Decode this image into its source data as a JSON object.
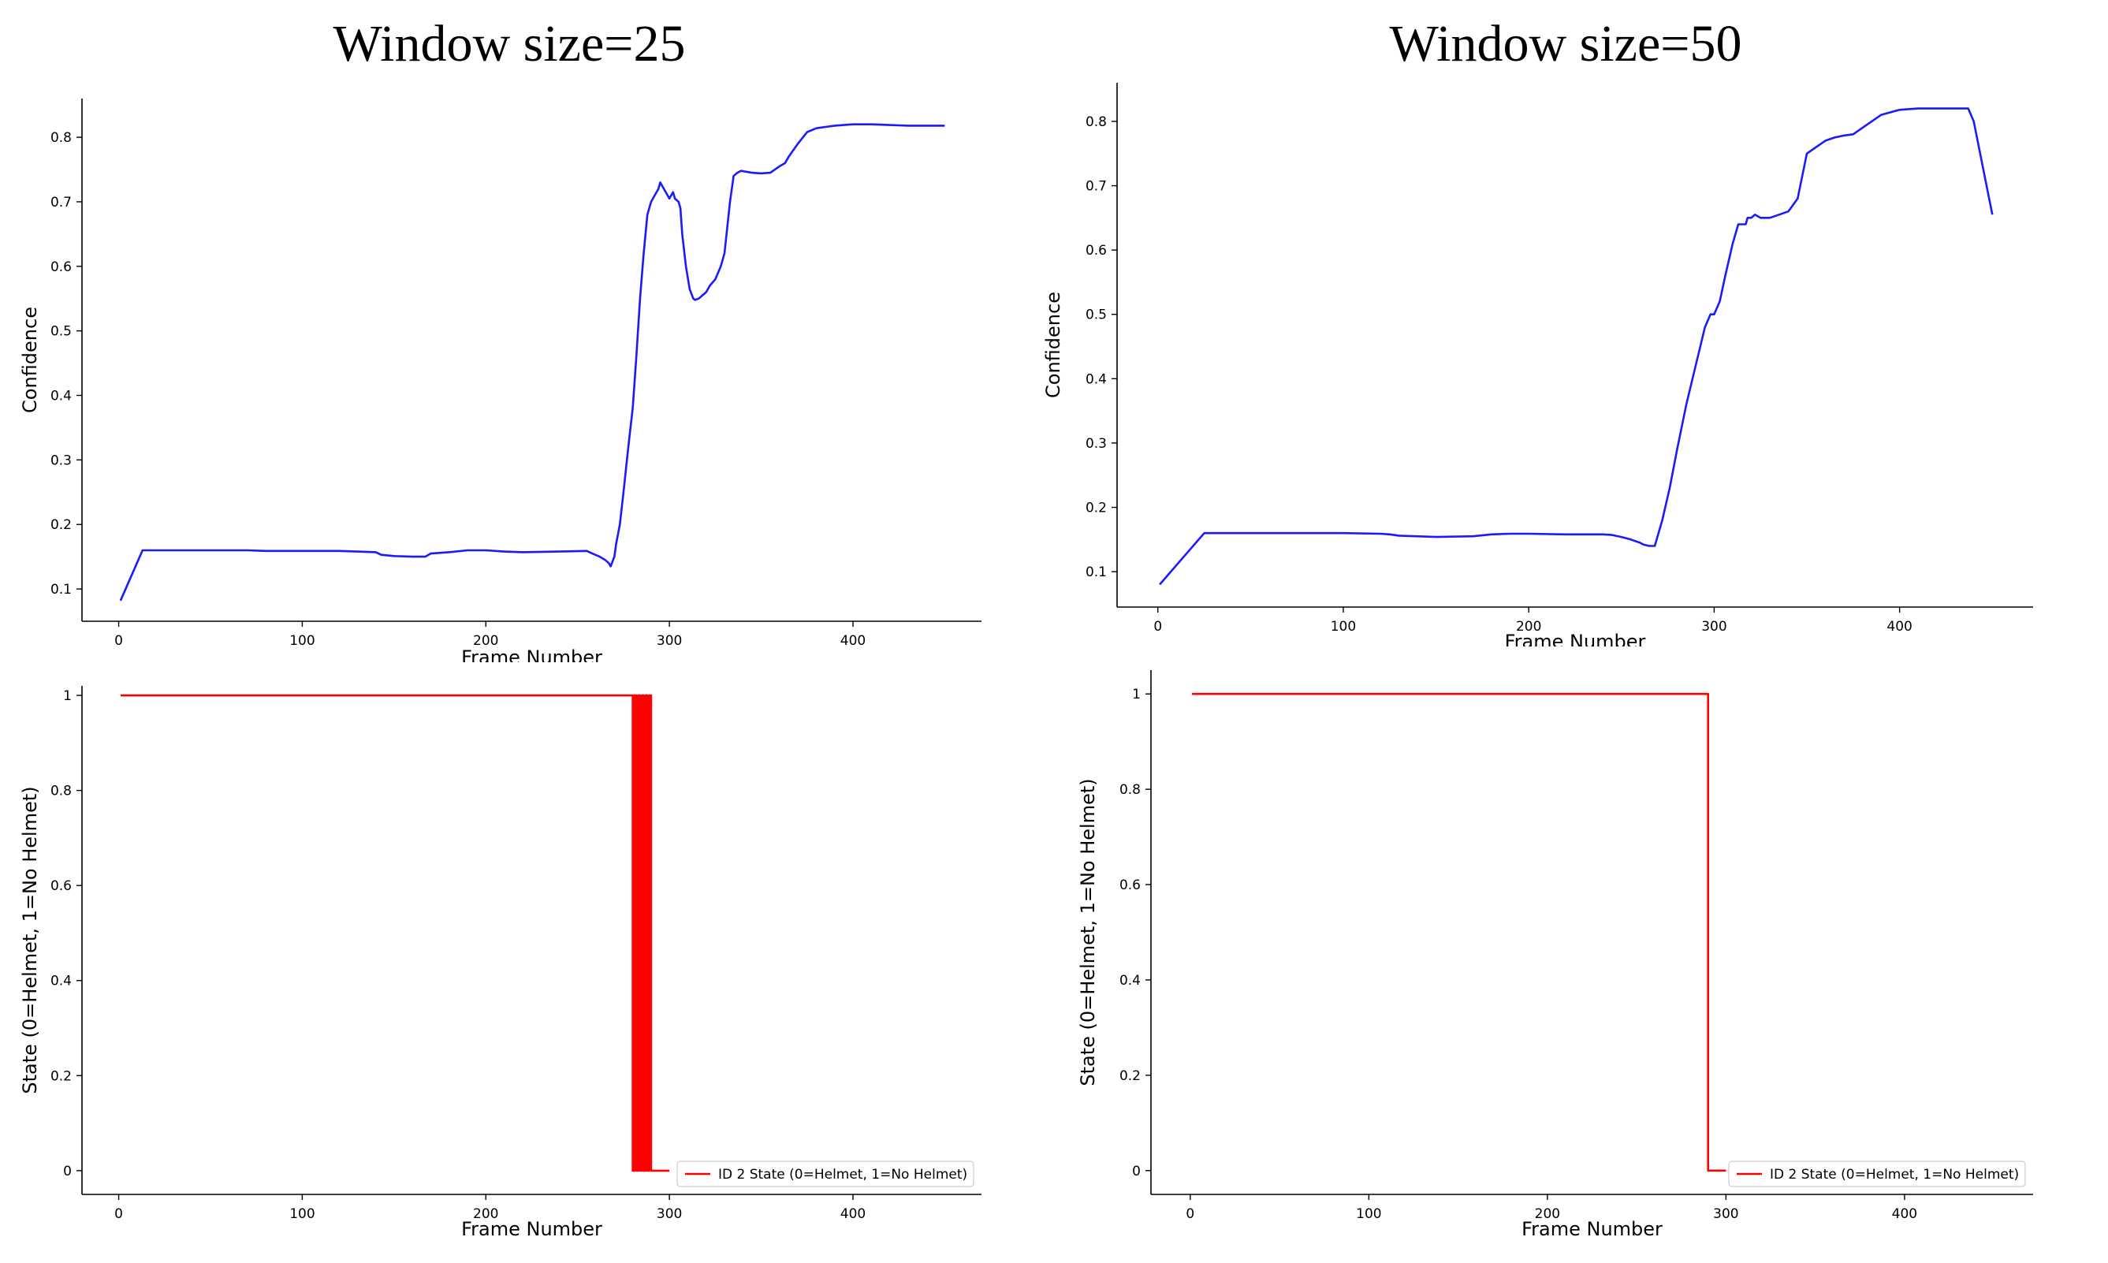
{
  "column_titles": [
    "Window size=25",
    "Window size=50"
  ],
  "colors": {
    "confidence_line": "#1a1aff",
    "state_line": "#ff0000",
    "axis": "#000000"
  },
  "chart_data": [
    {
      "type": "line",
      "xlabel": "Frame Number",
      "ylabel": "Confidence",
      "xlim": [
        -20,
        470
      ],
      "ylim": [
        0.05,
        0.86
      ],
      "xticks": [
        0,
        100,
        200,
        300,
        400
      ],
      "yticks": [
        0.1,
        0.2,
        0.3,
        0.4,
        0.5,
        0.6,
        0.7,
        0.8
      ],
      "series": [
        {
          "color": "#1a1aff",
          "x": [
            1,
            13,
            30,
            50,
            70,
            80,
            100,
            120,
            130,
            140,
            143,
            150,
            160,
            167,
            170,
            180,
            190,
            200,
            210,
            220,
            240,
            255,
            258,
            262,
            265,
            267,
            268,
            270,
            271,
            273,
            275,
            278,
            280,
            282,
            284,
            286,
            288,
            290,
            292,
            294,
            295,
            296,
            297,
            298,
            299,
            300,
            302,
            303,
            305,
            306,
            307,
            309,
            311,
            313,
            314,
            316,
            318,
            320,
            322,
            325,
            328,
            330,
            333,
            335,
            337,
            339,
            341,
            343,
            345,
            350,
            355,
            360,
            363,
            365,
            370,
            375,
            380,
            385,
            390,
            400,
            410,
            420,
            430,
            440,
            450
          ],
          "y": [
            0.082,
            0.16,
            0.16,
            0.16,
            0.16,
            0.159,
            0.159,
            0.159,
            0.158,
            0.157,
            0.153,
            0.151,
            0.15,
            0.15,
            0.155,
            0.157,
            0.16,
            0.16,
            0.158,
            0.157,
            0.158,
            0.159,
            0.155,
            0.15,
            0.145,
            0.14,
            0.135,
            0.15,
            0.17,
            0.2,
            0.25,
            0.33,
            0.38,
            0.46,
            0.55,
            0.62,
            0.68,
            0.7,
            0.71,
            0.72,
            0.73,
            0.725,
            0.72,
            0.715,
            0.71,
            0.705,
            0.715,
            0.705,
            0.7,
            0.69,
            0.65,
            0.6,
            0.565,
            0.55,
            0.548,
            0.55,
            0.555,
            0.56,
            0.57,
            0.58,
            0.6,
            0.62,
            0.7,
            0.74,
            0.745,
            0.748,
            0.747,
            0.746,
            0.745,
            0.744,
            0.745,
            0.755,
            0.76,
            0.77,
            0.79,
            0.808,
            0.814,
            0.816,
            0.818,
            0.82,
            0.82,
            0.819,
            0.818,
            0.818,
            0.818
          ]
        }
      ]
    },
    {
      "type": "line",
      "xlabel": "Frame Number",
      "ylabel": "Confidence",
      "xlim": [
        -22,
        472
      ],
      "ylim": [
        0.045,
        0.86
      ],
      "xticks": [
        0,
        100,
        200,
        300,
        400
      ],
      "yticks": [
        0.1,
        0.2,
        0.3,
        0.4,
        0.5,
        0.6,
        0.7,
        0.8
      ],
      "series": [
        {
          "color": "#1a1aff",
          "x": [
            1,
            25,
            50,
            100,
            120,
            125,
            130,
            150,
            170,
            180,
            190,
            200,
            220,
            240,
            245,
            250,
            255,
            260,
            262,
            265,
            268,
            272,
            276,
            280,
            285,
            290,
            295,
            298,
            300,
            303,
            306,
            310,
            313,
            317,
            318,
            320,
            322,
            325,
            330,
            335,
            340,
            345,
            350,
            355,
            360,
            365,
            370,
            375,
            380,
            390,
            400,
            410,
            420,
            430,
            437,
            440,
            450
          ],
          "y": [
            0.08,
            0.16,
            0.16,
            0.16,
            0.159,
            0.158,
            0.156,
            0.154,
            0.155,
            0.158,
            0.159,
            0.159,
            0.158,
            0.158,
            0.157,
            0.154,
            0.15,
            0.145,
            0.142,
            0.14,
            0.14,
            0.18,
            0.23,
            0.29,
            0.36,
            0.42,
            0.48,
            0.5,
            0.5,
            0.52,
            0.56,
            0.61,
            0.64,
            0.64,
            0.65,
            0.65,
            0.655,
            0.65,
            0.65,
            0.655,
            0.66,
            0.68,
            0.75,
            0.76,
            0.77,
            0.775,
            0.778,
            0.78,
            0.79,
            0.81,
            0.818,
            0.82,
            0.82,
            0.82,
            0.82,
            0.8,
            0.655
          ]
        }
      ]
    },
    {
      "type": "line",
      "xlabel": "Frame Number",
      "ylabel": "State (0=Helmet, 1=No Helmet)",
      "xlim": [
        -20,
        470
      ],
      "ylim": [
        -0.05,
        1.02
      ],
      "xticks": [
        0,
        100,
        200,
        300,
        400
      ],
      "yticks": [
        0.0,
        0.2,
        0.4,
        0.6,
        0.8,
        1.0
      ],
      "legend": "lower right",
      "series": [
        {
          "name": "ID 2 State (0=Helmet, 1=No Helmet)",
          "color": "#ff0000",
          "x": [
            1,
            280,
            280,
            281,
            281,
            282,
            282,
            283,
            283,
            284,
            284,
            285,
            285,
            286,
            286,
            287,
            287,
            288,
            288,
            289,
            289,
            290,
            290,
            291,
            291,
            300
          ],
          "y": [
            1,
            1,
            0,
            0,
            1,
            1,
            0,
            0,
            1,
            1,
            0,
            0,
            1,
            1,
            0,
            0,
            1,
            1,
            0,
            0,
            1,
            1,
            0,
            0,
            0,
            0
          ]
        }
      ]
    },
    {
      "type": "line",
      "xlabel": "Frame Number",
      "ylabel": "State (0=Helmet, 1=No Helmet)",
      "xlim": [
        -22,
        472
      ],
      "ylim": [
        -0.05,
        1.05
      ],
      "xticks": [
        0,
        100,
        200,
        300,
        400
      ],
      "yticks": [
        0.0,
        0.2,
        0.4,
        0.6,
        0.8,
        1.0
      ],
      "legend": "lower right",
      "series": [
        {
          "name": "ID 2 State (0=Helmet, 1=No Helmet)",
          "color": "#ff0000",
          "x": [
            1,
            290,
            290,
            300
          ],
          "y": [
            1,
            1,
            0,
            0
          ]
        }
      ]
    }
  ]
}
